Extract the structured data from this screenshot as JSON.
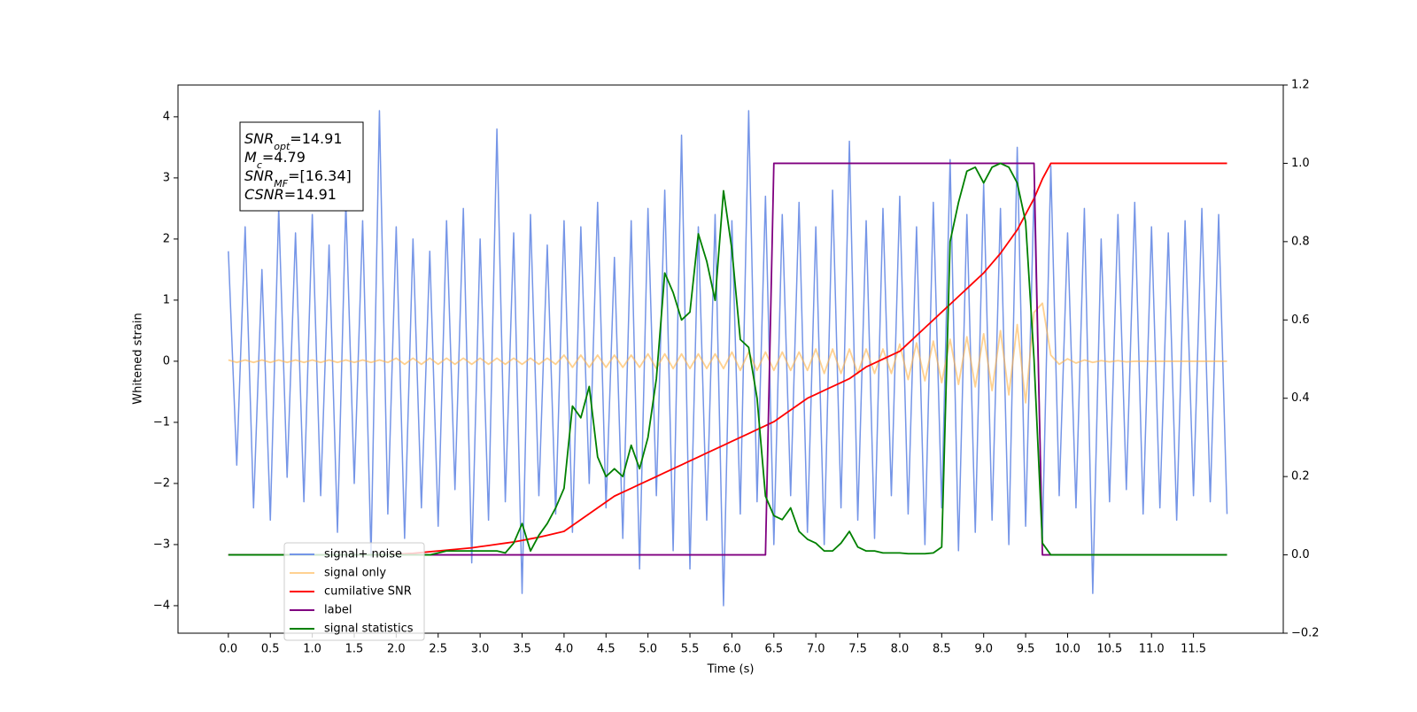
{
  "chart_data": {
    "type": "line",
    "xlabel": "Time (s)",
    "ylabel": "Whitened strain",
    "xlim": [
      -0.6,
      12.57
    ],
    "ylim": [
      -4.45,
      4.52
    ],
    "y2lim": [
      -0.2,
      1.2
    ],
    "xticks": [
      {
        "value": 0,
        "label": "0.0"
      },
      0.5,
      {
        "value": 1,
        "label": "1.0"
      },
      1.5,
      {
        "value": 2,
        "label": "2.0"
      },
      2.5,
      {
        "value": 3,
        "label": "3.0"
      },
      3.5,
      {
        "value": 4,
        "label": "4.0"
      },
      4.5,
      {
        "value": 5,
        "label": "5.0"
      },
      5.5,
      {
        "value": 6,
        "label": "6.0"
      },
      6.5,
      {
        "value": 7,
        "label": "7.0"
      },
      7.5,
      {
        "value": 8,
        "label": "8.0"
      },
      8.5,
      {
        "value": 9,
        "label": "9.0"
      },
      9.5,
      {
        "value": 10,
        "label": "10.0"
      },
      10.5,
      {
        "value": 11,
        "label": "11.0"
      },
      11.5
    ],
    "yticks": [
      {
        "value": -4,
        "label": "−4"
      },
      {
        "value": -3,
        "label": "−3"
      },
      {
        "value": -2,
        "label": "−2"
      },
      {
        "value": -1,
        "label": "−1"
      },
      0,
      1,
      2,
      3,
      4
    ],
    "y2ticks": [
      {
        "value": -0.2,
        "label": "−0.2"
      },
      {
        "value": 0,
        "label": "0.0"
      },
      0.2,
      0.4,
      0.6,
      0.8,
      {
        "value": 1,
        "label": "1.0"
      },
      1.2
    ],
    "x": [
      0,
      0.1,
      0.2,
      0.3,
      0.4,
      0.5,
      0.6,
      0.7,
      0.8,
      0.9,
      1,
      1.1,
      1.2,
      1.3,
      1.4,
      1.5,
      1.6,
      1.7,
      1.8,
      1.9,
      2,
      2.1,
      2.2,
      2.3,
      2.4,
      2.5,
      2.6,
      2.7,
      2.8,
      2.9,
      3,
      3.1,
      3.2,
      3.3,
      3.4,
      3.5,
      3.6,
      3.7,
      3.8,
      3.9,
      4,
      4.1,
      4.2,
      4.3,
      4.4,
      4.5,
      4.6,
      4.7,
      4.8,
      4.9,
      5,
      5.1,
      5.2,
      5.3,
      5.4,
      5.5,
      5.6,
      5.7,
      5.8,
      5.9,
      6,
      6.1,
      6.2,
      6.3,
      6.4,
      6.5,
      6.6,
      6.7,
      6.8,
      6.9,
      7,
      7.1,
      7.2,
      7.3,
      7.4,
      7.5,
      7.6,
      7.7,
      7.8,
      7.9,
      8,
      8.1,
      8.2,
      8.3,
      8.4,
      8.5,
      8.6,
      8.7,
      8.8,
      8.9,
      9,
      9.1,
      9.2,
      9.3,
      9.4,
      9.5,
      9.6,
      9.7,
      9.8,
      9.9,
      10,
      10.1,
      10.2,
      10.3,
      10.4,
      10.5,
      10.6,
      10.7,
      10.8,
      10.9,
      11,
      11.1,
      11.2,
      11.3,
      11.4,
      11.5,
      11.6,
      11.7,
      11.8,
      11.9
    ],
    "series": [
      {
        "name": "signal+ noise",
        "color": "#7595e7",
        "axis": "y",
        "values": [
          1.8,
          -1.7,
          2.2,
          -2.4,
          1.5,
          -2.6,
          2.5,
          -1.9,
          2.1,
          -2.3,
          2.4,
          -2.2,
          1.9,
          -2.8,
          2.6,
          -2.0,
          2.3,
          -3.2,
          4.1,
          -2.5,
          2.2,
          -2.9,
          2.0,
          -2.4,
          1.8,
          -2.7,
          2.3,
          -2.1,
          2.5,
          -3.3,
          2.0,
          -2.6,
          3.8,
          -2.3,
          2.1,
          -3.8,
          2.4,
          -2.2,
          1.9,
          -2.5,
          2.3,
          -2.8,
          2.2,
          -2.0,
          2.6,
          -2.4,
          1.7,
          -2.9,
          2.3,
          -3.4,
          2.5,
          -2.2,
          2.8,
          -3.1,
          3.7,
          -3.4,
          2.2,
          -2.6,
          2.4,
          -4.0,
          2.3,
          -2.5,
          4.1,
          -2.3,
          2.7,
          -3.0,
          2.4,
          -2.2,
          2.6,
          -2.8,
          2.2,
          -3.0,
          2.8,
          -2.4,
          3.6,
          -2.6,
          2.3,
          -2.9,
          2.5,
          -2.2,
          2.7,
          -2.5,
          2.2,
          -3.0,
          2.6,
          -2.4,
          3.3,
          -3.1,
          2.4,
          -2.8,
          2.9,
          -2.6,
          2.5,
          -3.0,
          3.5,
          -2.7,
          2.8,
          -2.9,
          3.2,
          -2.2,
          2.1,
          -2.4,
          2.5,
          -3.8,
          2.0,
          -2.3,
          2.4,
          -2.1,
          2.6,
          -2.5,
          2.2,
          -2.4,
          2.1,
          -2.6,
          2.3,
          -2.2,
          2.5,
          -2.3,
          2.4,
          -2.5
        ]
      },
      {
        "name": "signal only",
        "color": "#ffb347",
        "axis": "y",
        "values": [
          0.02,
          -0.02,
          0.02,
          -0.02,
          0.02,
          -0.02,
          0.02,
          -0.02,
          0.02,
          -0.02,
          0.02,
          -0.02,
          0.02,
          -0.02,
          0.02,
          -0.02,
          0.02,
          -0.02,
          0.02,
          -0.02,
          0.05,
          -0.05,
          0.05,
          -0.05,
          0.05,
          -0.05,
          0.05,
          -0.05,
          0.05,
          -0.05,
          0.05,
          -0.05,
          0.05,
          -0.05,
          0.05,
          -0.05,
          0.05,
          -0.05,
          0.05,
          -0.05,
          0.1,
          -0.1,
          0.1,
          -0.1,
          0.1,
          -0.1,
          0.1,
          -0.1,
          0.1,
          -0.1,
          0.12,
          -0.12,
          0.12,
          -0.12,
          0.12,
          -0.12,
          0.12,
          -0.12,
          0.12,
          -0.12,
          0.15,
          -0.15,
          0.15,
          -0.15,
          0.15,
          -0.15,
          0.15,
          -0.15,
          0.15,
          -0.15,
          0.2,
          -0.2,
          0.2,
          -0.2,
          0.2,
          -0.2,
          0.2,
          -0.2,
          0.2,
          -0.2,
          0.28,
          -0.3,
          0.3,
          -0.32,
          0.33,
          -0.35,
          0.36,
          -0.38,
          0.4,
          -0.42,
          0.45,
          -0.48,
          0.5,
          -0.55,
          0.6,
          -0.68,
          0.8,
          0.95,
          0.1,
          -0.05,
          0.04,
          -0.03,
          0.02,
          -0.02,
          0.01,
          -0.01,
          0.01,
          -0.01,
          0,
          0,
          0,
          0,
          0,
          0,
          0,
          0,
          0,
          0,
          0,
          0
        ]
      },
      {
        "name": "cumilative SNR",
        "color": "#ff0000",
        "axis": "y2",
        "values": [
          0,
          0,
          0,
          0,
          0,
          0,
          0,
          0,
          0,
          0,
          0,
          0,
          0,
          0,
          0,
          0,
          0,
          0,
          0,
          0,
          0.002,
          0.003,
          0.004,
          0.006,
          0.008,
          0.01,
          0.012,
          0.014,
          0.016,
          0.018,
          0.021,
          0.024,
          0.027,
          0.03,
          0.033,
          0.037,
          0.041,
          0.045,
          0.05,
          0.055,
          0.06,
          0.075,
          0.09,
          0.105,
          0.12,
          0.135,
          0.15,
          0.16,
          0.17,
          0.18,
          0.19,
          0.2,
          0.21,
          0.22,
          0.23,
          0.24,
          0.25,
          0.26,
          0.27,
          0.28,
          0.29,
          0.3,
          0.31,
          0.32,
          0.33,
          0.34,
          0.355,
          0.37,
          0.385,
          0.4,
          0.41,
          0.42,
          0.43,
          0.44,
          0.45,
          0.465,
          0.48,
          0.49,
          0.5,
          0.51,
          0.52,
          0.54,
          0.56,
          0.58,
          0.6,
          0.62,
          0.64,
          0.66,
          0.68,
          0.7,
          0.72,
          0.745,
          0.77,
          0.8,
          0.83,
          0.87,
          0.91,
          0.96,
          1,
          1,
          1,
          1,
          1,
          1,
          1,
          1,
          1,
          1,
          1,
          1,
          1,
          1,
          1,
          1,
          1,
          1,
          1,
          1,
          1,
          1
        ]
      },
      {
        "name": "label",
        "color": "#800080",
        "axis": "y2",
        "values": [
          0,
          0,
          0,
          0,
          0,
          0,
          0,
          0,
          0,
          0,
          0,
          0,
          0,
          0,
          0,
          0,
          0,
          0,
          0,
          0,
          0,
          0,
          0,
          0,
          0,
          0,
          0,
          0,
          0,
          0,
          0,
          0,
          0,
          0,
          0,
          0,
          0,
          0,
          0,
          0,
          0,
          0,
          0,
          0,
          0,
          0,
          0,
          0,
          0,
          0,
          0,
          0,
          0,
          0,
          0,
          0,
          0,
          0,
          0,
          0,
          0,
          0,
          0,
          0,
          0,
          1,
          1,
          1,
          1,
          1,
          1,
          1,
          1,
          1,
          1,
          1,
          1,
          1,
          1,
          1,
          1,
          1,
          1,
          1,
          1,
          1,
          1,
          1,
          1,
          1,
          1,
          1,
          1,
          1,
          1,
          1,
          1,
          0,
          0,
          0,
          0,
          0,
          0,
          0,
          0,
          0,
          0,
          0,
          0,
          0,
          0,
          0,
          0,
          0,
          0,
          0,
          0,
          0,
          0,
          0
        ]
      },
      {
        "name": "signal statistics",
        "color": "#008000",
        "axis": "y2",
        "values": [
          0,
          0,
          0,
          0,
          0,
          0,
          0,
          0,
          0,
          0,
          0,
          0,
          0,
          0,
          0,
          0,
          0,
          0,
          0,
          0,
          0,
          0,
          0,
          0,
          0,
          0.005,
          0.01,
          0.01,
          0.01,
          0.01,
          0.01,
          0.01,
          0.01,
          0.005,
          0.03,
          0.08,
          0.01,
          0.05,
          0.08,
          0.12,
          0.17,
          0.38,
          0.35,
          0.43,
          0.25,
          0.2,
          0.22,
          0.2,
          0.28,
          0.22,
          0.3,
          0.45,
          0.72,
          0.67,
          0.6,
          0.62,
          0.82,
          0.75,
          0.65,
          0.93,
          0.78,
          0.55,
          0.53,
          0.4,
          0.15,
          0.1,
          0.09,
          0.12,
          0.06,
          0.04,
          0.03,
          0.01,
          0.01,
          0.03,
          0.06,
          0.02,
          0.01,
          0.01,
          0.005,
          0.005,
          0.005,
          0.003,
          0.003,
          0.003,
          0.005,
          0.02,
          0.8,
          0.9,
          0.98,
          0.99,
          0.95,
          0.99,
          1,
          0.99,
          0.95,
          0.85,
          0.5,
          0.03,
          0,
          0,
          0,
          0,
          0,
          0,
          0,
          0,
          0,
          0,
          0,
          0,
          0,
          0,
          0,
          0,
          0,
          0,
          0,
          0,
          0,
          0
        ]
      }
    ],
    "annotation": [
      {
        "text": "SNR",
        "sub": "opt",
        "value": "=14.91"
      },
      {
        "text": "M",
        "sub": "c",
        "value": "=4.79"
      },
      {
        "text": "SNR",
        "sub": "MF",
        "value": "=[16.34]"
      },
      {
        "text": "CSNR",
        "sub": null,
        "value": "=14.91"
      }
    ],
    "legend": "lower left"
  }
}
